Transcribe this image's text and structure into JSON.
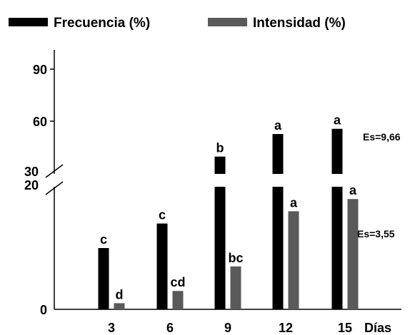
{
  "chart_data": {
    "type": "bar",
    "categories": [
      "3",
      "6",
      "9",
      "12",
      "15"
    ],
    "x_unit_label": "Días",
    "series": [
      {
        "name": "Frecuencia (%)",
        "color": "#000000",
        "values": [
          10,
          14,
          40,
          53,
          56
        ],
        "labels": [
          "c",
          "c",
          "b",
          "a",
          "a"
        ]
      },
      {
        "name": "Intensidad (%)",
        "color": "#5a5a5a",
        "values": [
          1,
          3,
          7,
          16,
          18
        ],
        "labels": [
          "d",
          "cd",
          "bc",
          "a",
          "a"
        ]
      }
    ],
    "y_axis": {
      "broken": true,
      "lower_segment": {
        "range": [
          0,
          20
        ],
        "ticks": [
          "0",
          "20"
        ]
      },
      "upper_segment": {
        "range": [
          30,
          90
        ],
        "ticks": [
          "30",
          "60",
          "90"
        ]
      }
    },
    "annotations": {
      "upper_se": "Es=9,66",
      "lower_se": "Es=3,55"
    },
    "legend_position": "top-left",
    "grid": false
  }
}
